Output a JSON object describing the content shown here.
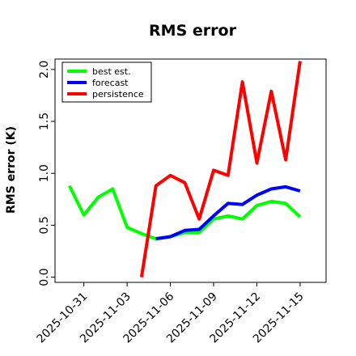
{
  "chart_data": {
    "type": "line",
    "title": "RMS error",
    "ylabel": "RMS error (K)",
    "xlabel": "",
    "ylim": [
      -0.05,
      2.1
    ],
    "yticks": [
      0.0,
      0.5,
      1.0,
      1.5,
      2.0
    ],
    "ytick_labels": [
      "0.0",
      "0.5",
      "1.0",
      "1.5",
      "2.0"
    ],
    "x_ticks": [
      {
        "pos": 2,
        "label": "2025-10-31",
        "color": "#000000"
      },
      {
        "pos": 5,
        "label": "2025-11-03",
        "color": "#000000"
      },
      {
        "pos": 8,
        "label": "2025-11-06",
        "color": "#228b22"
      },
      {
        "pos": 11,
        "label": "2025-11-09",
        "color": "#000000"
      },
      {
        "pos": 14,
        "label": "2025-11-12",
        "color": "#000000"
      },
      {
        "pos": 17,
        "label": "2025-11-15",
        "color": "#000000"
      }
    ],
    "xlim": [
      0,
      18.8
    ],
    "legend_position": "top-left",
    "grid": false,
    "series": [
      {
        "name": "best est.",
        "color": "#00ff00",
        "points": [
          [
            1,
            0.88
          ],
          [
            2,
            0.6
          ],
          [
            3,
            0.77
          ],
          [
            4,
            0.85
          ],
          [
            5,
            0.48
          ],
          [
            6,
            0.42
          ],
          [
            7,
            0.37
          ],
          [
            8,
            0.39
          ],
          [
            9,
            0.43
          ],
          [
            10,
            0.43
          ],
          [
            11,
            0.56
          ],
          [
            12,
            0.59
          ],
          [
            13,
            0.56
          ],
          [
            14,
            0.69
          ],
          [
            15,
            0.73
          ],
          [
            16,
            0.71
          ],
          [
            17,
            0.58
          ]
        ]
      },
      {
        "name": "forecast",
        "color": "#0000ff",
        "points": [
          [
            7,
            0.37
          ],
          [
            8,
            0.39
          ],
          [
            9,
            0.45
          ],
          [
            10,
            0.46
          ],
          [
            11,
            0.59
          ],
          [
            12,
            0.71
          ],
          [
            13,
            0.7
          ],
          [
            14,
            0.79
          ],
          [
            15,
            0.85
          ],
          [
            16,
            0.87
          ],
          [
            17,
            0.83
          ]
        ]
      },
      {
        "name": "persistence",
        "color": "#ff0000",
        "points": [
          [
            6,
            0.0
          ],
          [
            7,
            0.88
          ],
          [
            8,
            0.98
          ],
          [
            9,
            0.91
          ],
          [
            10,
            0.56
          ],
          [
            11,
            1.03
          ],
          [
            12,
            0.98
          ],
          [
            13,
            1.88
          ],
          [
            14,
            1.1
          ],
          [
            15,
            1.79
          ],
          [
            16,
            1.13
          ],
          [
            17,
            2.08
          ]
        ]
      }
    ]
  }
}
